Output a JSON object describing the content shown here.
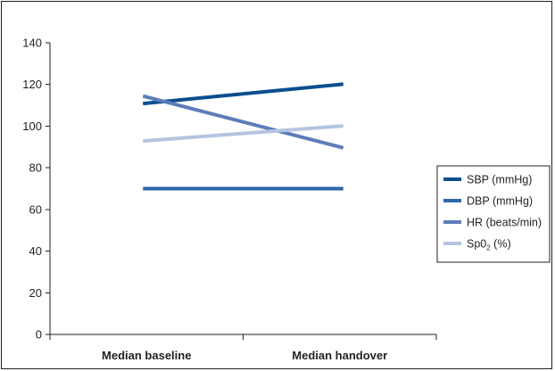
{
  "chart_data": {
    "type": "line",
    "categories": [
      "Median baseline",
      "Median handover"
    ],
    "ylim": [
      0,
      140
    ],
    "yticks": [
      0,
      20,
      40,
      60,
      80,
      100,
      120,
      140
    ],
    "grid": false,
    "legend_position": "right",
    "series": [
      {
        "name": "SBP (mmHg)",
        "name_main": "SBP (mmHg)",
        "color": "#0b4e8f",
        "values": [
          111,
          120
        ]
      },
      {
        "name": "DBP (mmHg)",
        "name_main": "DBP (mmHg)",
        "color": "#2e67a8",
        "values": [
          70,
          70
        ]
      },
      {
        "name": "HR (beats/min)",
        "name_main": "HR (beats/min)",
        "color": "#5c7db9",
        "values": [
          114,
          90
        ]
      },
      {
        "name": "Sp0₂ (%)",
        "name_main": "Sp0",
        "name_sub": "2",
        "name_suffix": " (%)",
        "color": "#b5c4e1",
        "values": [
          93,
          100
        ]
      }
    ]
  }
}
